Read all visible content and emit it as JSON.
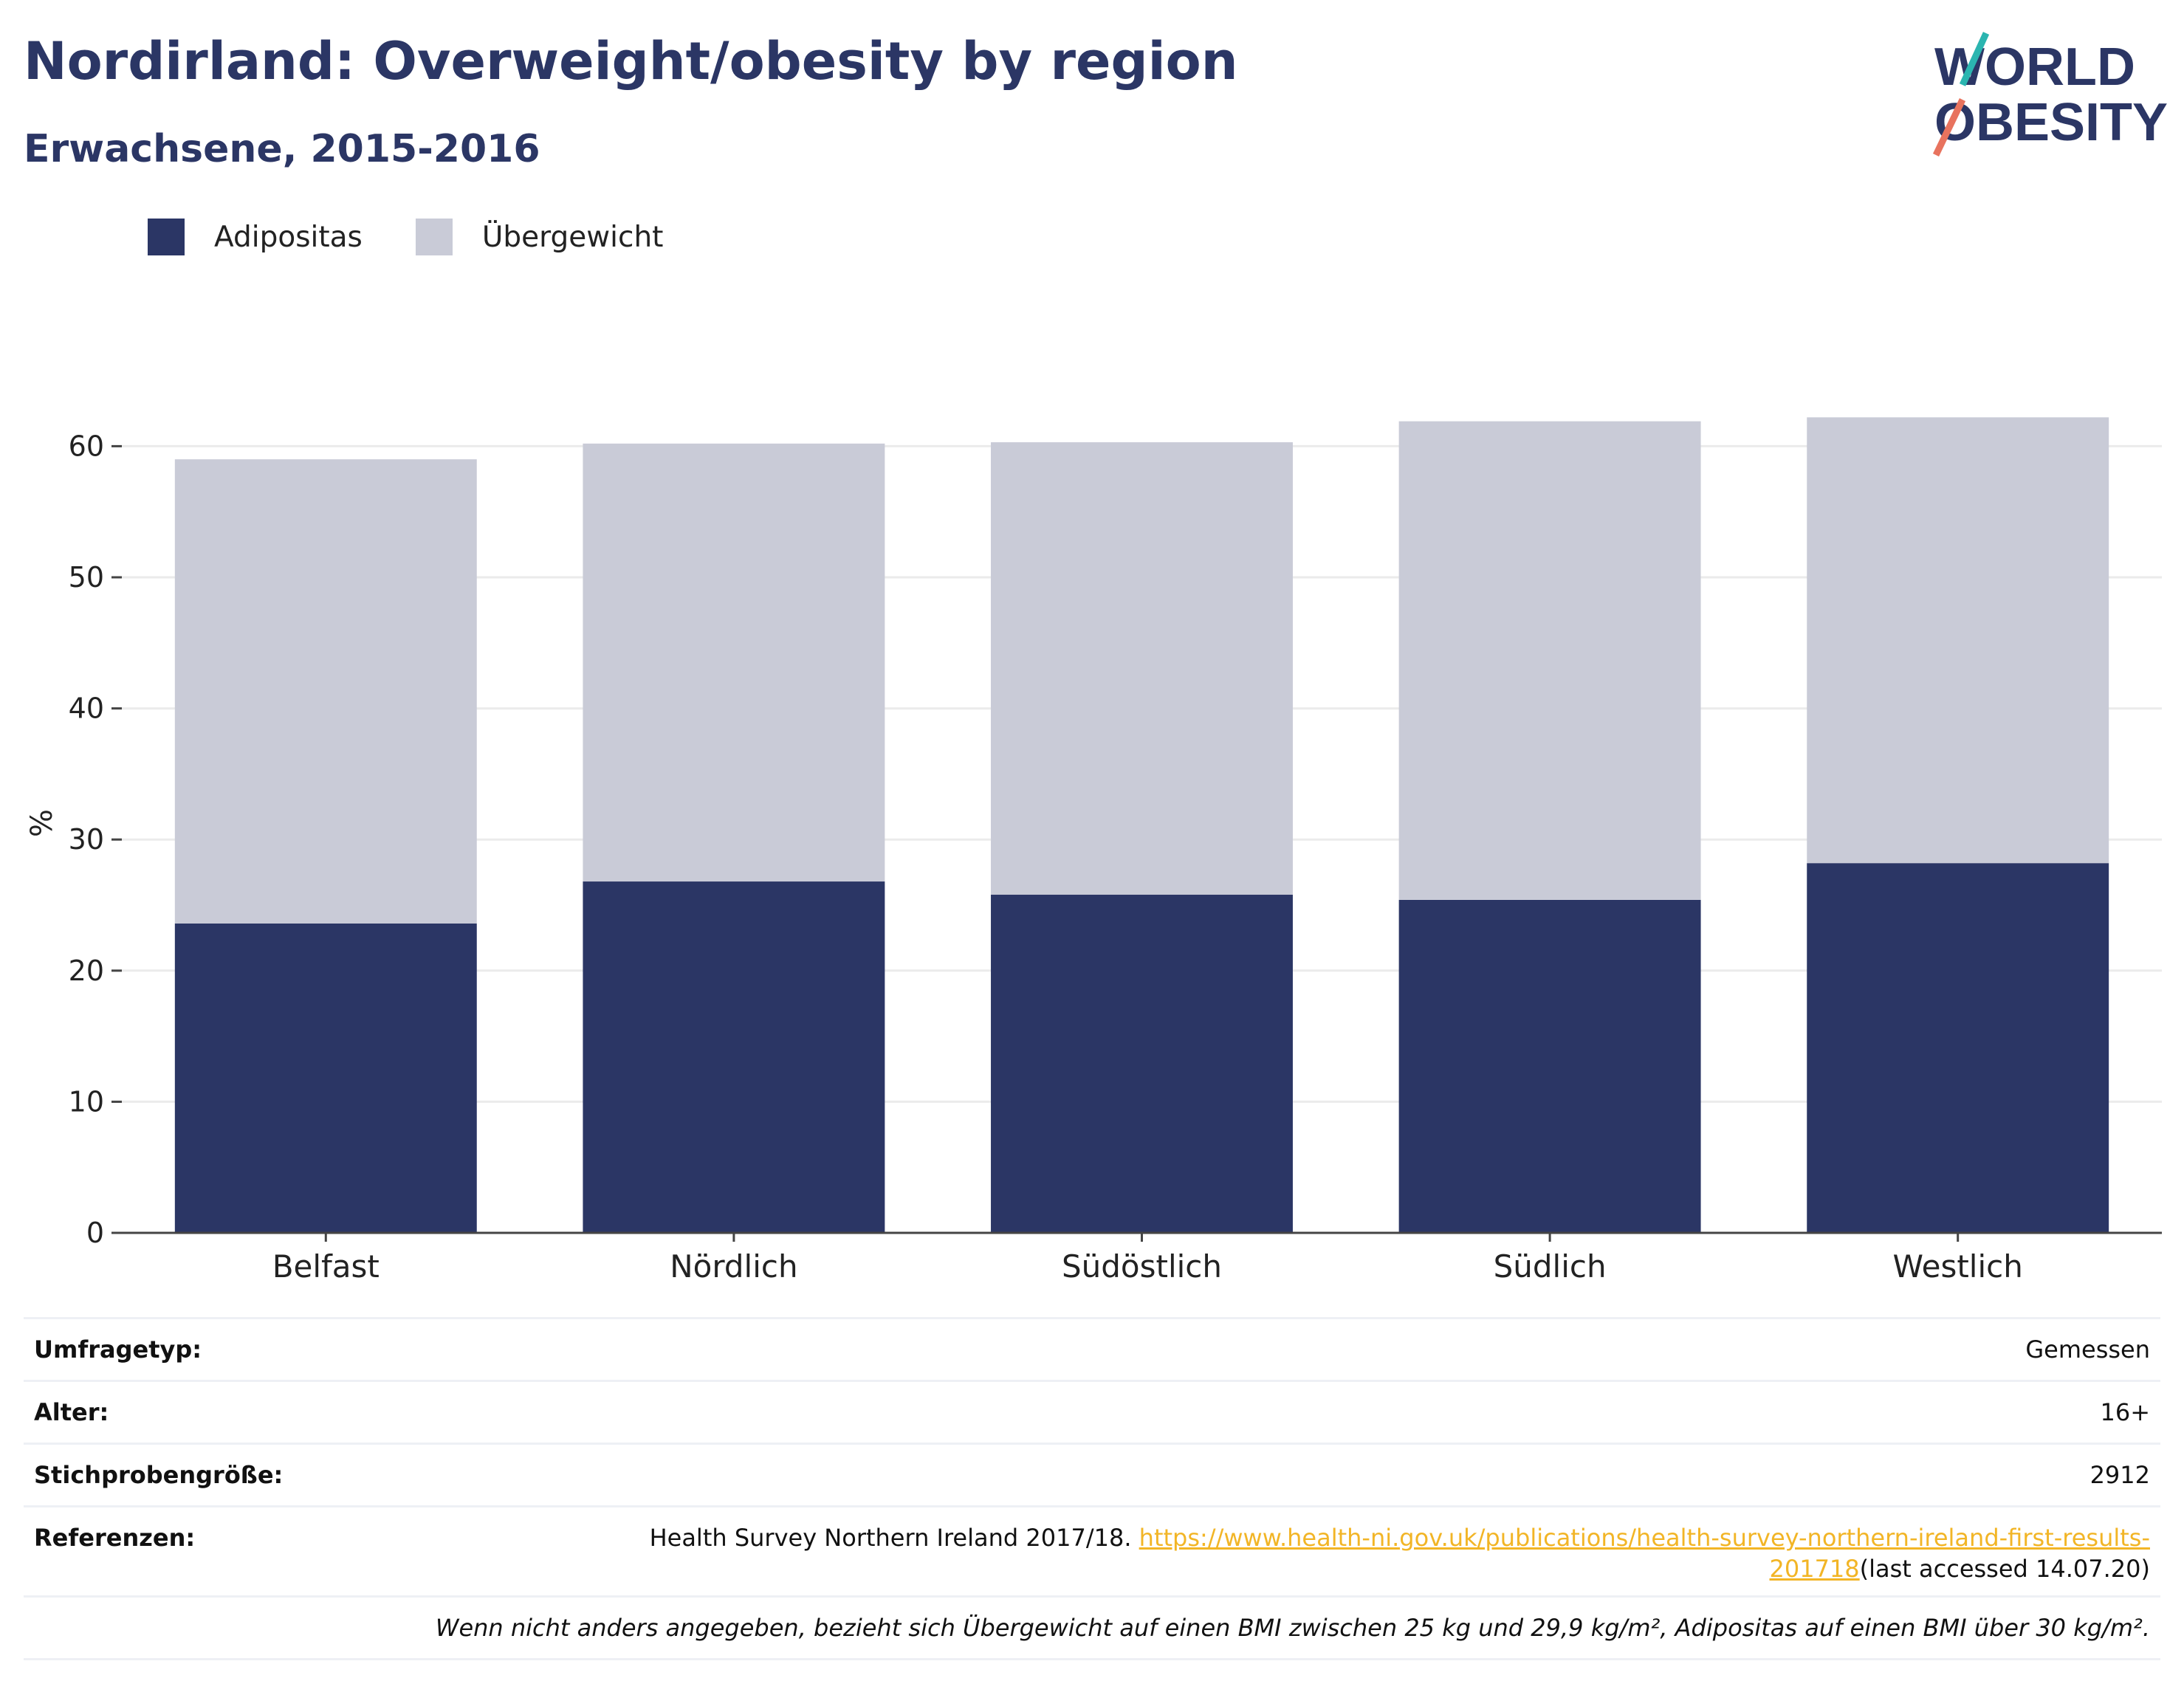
{
  "header": {
    "title": "Nordirland: Overweight/obesity by region",
    "subtitle": "Erwachsene, 2015-2016",
    "logo_line1": "WORLD",
    "logo_line2": "OBESITY"
  },
  "legend": [
    {
      "label": "Adipositas",
      "color": "#2b3665"
    },
    {
      "label": "Übergewicht",
      "color": "#c9cbd7"
    }
  ],
  "chart_data": {
    "type": "bar",
    "stacked": true,
    "categories": [
      "Belfast",
      "Nördlich",
      "Südöstlich",
      "Südlich",
      "Westlich"
    ],
    "series": [
      {
        "name": "Adipositas",
        "color": "#2b3665",
        "values": [
          23.6,
          26.8,
          25.8,
          25.4,
          28.2
        ]
      },
      {
        "name": "Übergewicht",
        "color": "#c9cbd7",
        "values": [
          35.4,
          33.4,
          34.5,
          36.5,
          34.0
        ]
      }
    ],
    "ylabel": "%",
    "xlabel": "",
    "ylim": [
      0,
      62.5
    ],
    "yticks": [
      0,
      10,
      20,
      30,
      40,
      50,
      60
    ],
    "grid": true
  },
  "info": {
    "survey_type_label": "Umfragetyp:",
    "survey_type_value": "Gemessen",
    "age_label": "Alter:",
    "age_value": "16+",
    "sample_label": "Stichprobengröße:",
    "sample_value": "2912",
    "references_label": "Referenzen:",
    "references_text": "Health Survey Northern Ireland 2017/18. ",
    "references_link_1": "https://www.health-ni.gov.uk/publications/health-survey-northern-ireland-first-results-",
    "references_link_2": "201718",
    "references_suffix": "(last accessed 14.07.20)",
    "note": "Wenn nicht anders angegeben, bezieht sich Übergewicht auf einen BMI zwischen 25 kg und 29,9 kg/m², Adipositas auf einen BMI über 30 kg/m²."
  }
}
